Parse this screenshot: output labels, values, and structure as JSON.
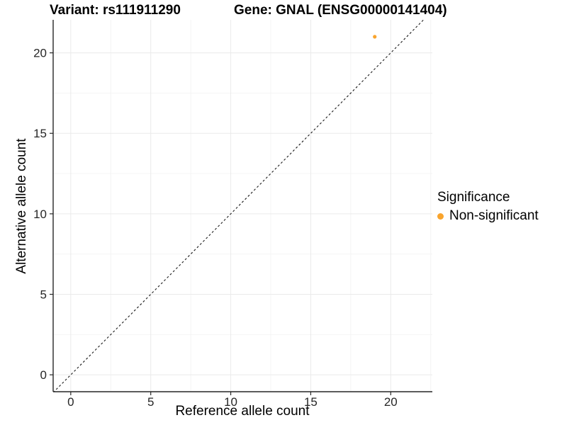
{
  "titles": {
    "left": "Variant: rs111911290",
    "right": "Gene: GNAL (ENSG00000141404)"
  },
  "legend": {
    "title": "Significance",
    "items": [
      {
        "label": "Non-significant",
        "color": "#F9A42D"
      }
    ]
  },
  "chart_data": {
    "type": "scatter",
    "title": "Variant: rs111911290 | Gene: GNAL (ENSG00000141404)",
    "xlabel": "Reference allele count",
    "ylabel": "Alternative allele count",
    "xlim": [
      -1.1,
      22.6
    ],
    "ylim": [
      -1.05,
      22.05
    ],
    "x_ticks": [
      0,
      5,
      10,
      15,
      20
    ],
    "y_ticks": [
      0,
      5,
      10,
      15,
      20
    ],
    "minor_grid_step": 2.5,
    "grid": true,
    "legend_position": "right",
    "series": [
      {
        "name": "Non-significant",
        "color": "#F9A42D",
        "points": [
          {
            "x": 19,
            "y": 21
          }
        ]
      }
    ],
    "reference_line": {
      "style": "dashed",
      "slope": 1,
      "intercept": 0,
      "color": "#1a1a1a"
    },
    "colors": {
      "axis": "#262626",
      "tick_label": "#262626",
      "grid_major": "#EAEAEA",
      "grid_minor": "#F4F4F4",
      "background": "#FFFFFF"
    }
  }
}
